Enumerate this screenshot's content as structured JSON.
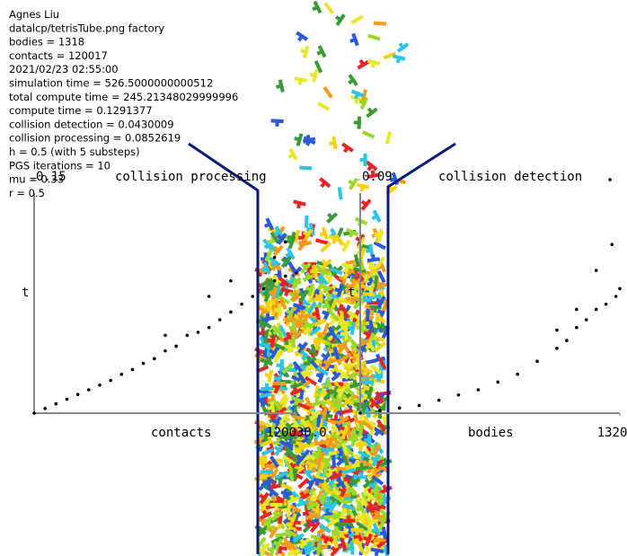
{
  "info": [
    "Agnes Liu",
    "datalcp/tetrisTube.png factory",
    "bodies = 1318",
    "contacts = 120017",
    "2021/02/23 02:55:00",
    "simulation time = 526.5000000000512",
    "total compute time = 245.21348029999996",
    "compute time = 0.1291377",
    "collision detection = 0.0430009",
    "collision processing = 0.0852619",
    "h = 0.5 (with 5 substeps)",
    "PGS iterations = 10",
    "mu = 0.33",
    "r = 0.5"
  ],
  "chart_data": [
    {
      "type": "scatter",
      "title": "collision processing",
      "x_label": "contacts",
      "y_label": "t",
      "xlim": [
        0,
        120030
      ],
      "xticks": [
        {
          "value": 120030,
          "label": "120030.0"
        }
      ],
      "ylim": [
        0,
        0.15
      ],
      "yticks": [
        0.15
      ],
      "color": "#000000",
      "x": [
        0,
        5000,
        10000,
        15000,
        20000,
        25000,
        30000,
        35000,
        40000,
        45000,
        50000,
        55000,
        60000,
        65000,
        70000,
        75000,
        80000,
        85000,
        90000,
        95000,
        100000,
        105000,
        110000,
        115000,
        120000,
        90000,
        110000,
        115000,
        80000,
        60000
      ],
      "values": [
        0,
        0.003,
        0.006,
        0.009,
        0.012,
        0.015,
        0.018,
        0.021,
        0.025,
        0.028,
        0.032,
        0.035,
        0.04,
        0.043,
        0.05,
        0.052,
        0.055,
        0.06,
        0.065,
        0.07,
        0.075,
        0.08,
        0.085,
        0.088,
        0.09,
        0.085,
        0.1,
        0.11,
        0.075,
        0.05
      ]
    },
    {
      "type": "scatter",
      "title": "collision detection",
      "x_label": "bodies",
      "y_label": "t",
      "xlim": [
        0,
        1320
      ],
      "xticks": [
        {
          "value": 1320,
          "label": "1320.0"
        }
      ],
      "ylim": [
        0,
        0.09
      ],
      "yticks": [
        0.09
      ],
      "color": "#000000",
      "x": [
        0,
        100,
        200,
        300,
        400,
        500,
        600,
        700,
        800,
        900,
        1000,
        1050,
        1100,
        1150,
        1200,
        1250,
        1300,
        1320,
        1100,
        1200,
        1280,
        1270,
        1000
      ],
      "values": [
        0,
        0.001,
        0.002,
        0.003,
        0.005,
        0.007,
        0.009,
        0.012,
        0.015,
        0.02,
        0.025,
        0.028,
        0.033,
        0.036,
        0.04,
        0.042,
        0.045,
        0.048,
        0.04,
        0.055,
        0.065,
        0.09,
        0.032
      ]
    }
  ]
}
